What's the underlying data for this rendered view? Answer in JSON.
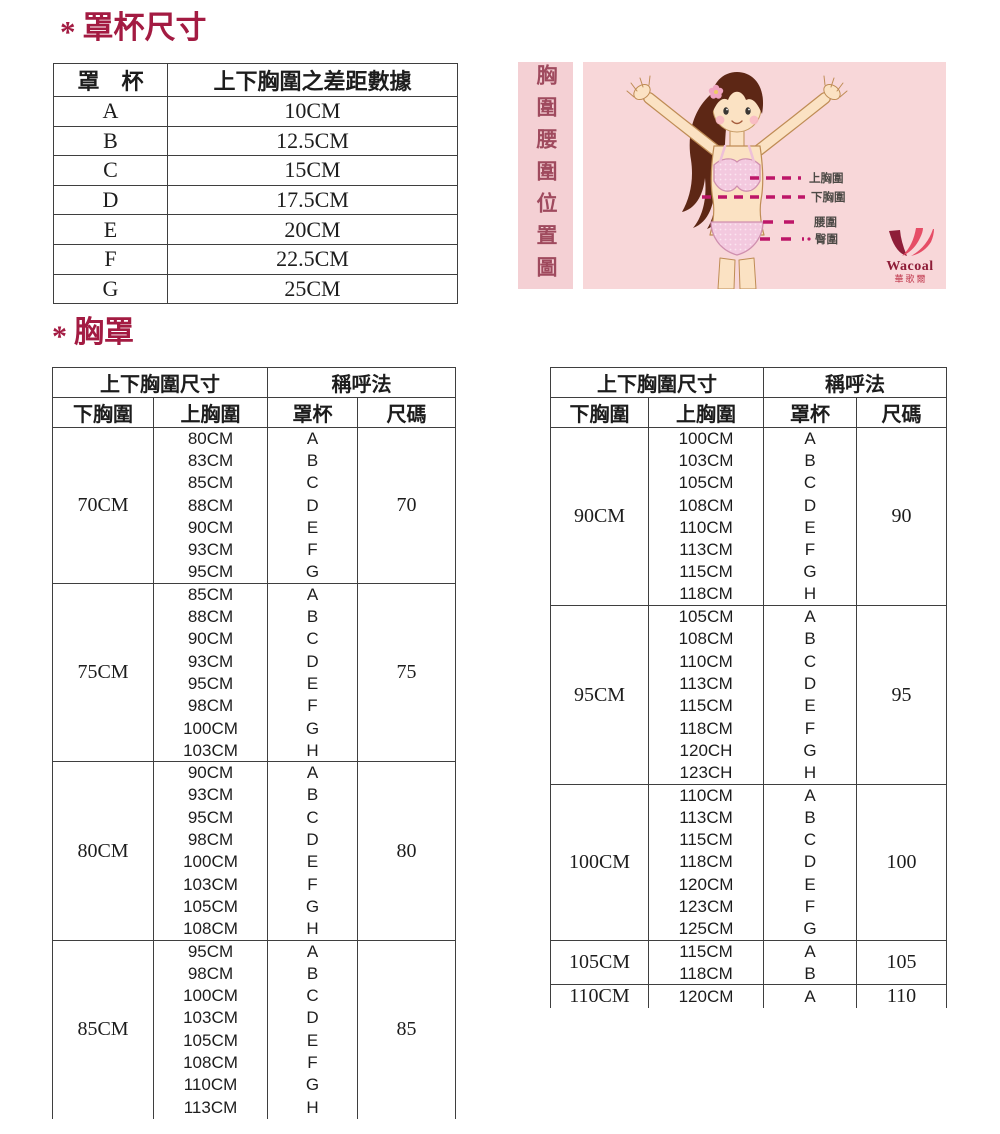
{
  "sections": {
    "cup": {
      "marker": "*",
      "title": "罩杯尺寸"
    },
    "bra": {
      "marker": "*",
      "title": "胸罩"
    }
  },
  "cup_table": {
    "col_headers": [
      "罩　杯",
      "上下胸圍之差距數據"
    ],
    "rows": [
      [
        "A",
        "10CM"
      ],
      [
        "B",
        "12.5CM"
      ],
      [
        "C",
        "15CM"
      ],
      [
        "D",
        "17.5CM"
      ],
      [
        "E",
        "20CM"
      ],
      [
        "F",
        "22.5CM"
      ],
      [
        "G",
        "25CM"
      ]
    ]
  },
  "diagram": {
    "vertical_title": "胸圍腰圍位置圖",
    "labels": [
      "上胸圍",
      "下胸圍",
      "腰圍",
      "臀圍"
    ],
    "brand": "Wacoal",
    "brand_chinese": "華歌爾",
    "colors": {
      "panel_bg": "#f8d7d9",
      "strip_bg": "#f4d0d4",
      "strip_text": "#9f4a5e",
      "dash_line": "#bd1668",
      "label_text": "#4d4a46",
      "logo_dark": "#8e1d38",
      "logo_bright": "#e64d66",
      "title_color": "#a31b42"
    }
  },
  "bra_tables": [
    {
      "group_headers": [
        "上下胸圍尺寸",
        "稱呼法"
      ],
      "col_headers": [
        "下胸圍",
        "上胸圍",
        "罩杯",
        "尺碼"
      ],
      "sections": [
        {
          "under_bust": "70CM",
          "size": "70",
          "rows": [
            [
              "80CM",
              "A"
            ],
            [
              "83CM",
              "B"
            ],
            [
              "85CM",
              "C"
            ],
            [
              "88CM",
              "D"
            ],
            [
              "90CM",
              "E"
            ],
            [
              "93CM",
              "F"
            ],
            [
              "95CM",
              "G"
            ]
          ]
        },
        {
          "under_bust": "75CM",
          "size": "75",
          "rows": [
            [
              "85CM",
              "A"
            ],
            [
              "88CM",
              "B"
            ],
            [
              "90CM",
              "C"
            ],
            [
              "93CM",
              "D"
            ],
            [
              "95CM",
              "E"
            ],
            [
              "98CM",
              "F"
            ],
            [
              "100CM",
              "G"
            ],
            [
              "103CM",
              "H"
            ]
          ]
        },
        {
          "under_bust": "80CM",
          "size": "80",
          "rows": [
            [
              "90CM",
              "A"
            ],
            [
              "93CM",
              "B"
            ],
            [
              "95CM",
              "C"
            ],
            [
              "98CM",
              "D"
            ],
            [
              "100CM",
              "E"
            ],
            [
              "103CM",
              "F"
            ],
            [
              "105CM",
              "G"
            ],
            [
              "108CM",
              "H"
            ]
          ]
        },
        {
          "under_bust": "85CM",
          "size": "85",
          "rows": [
            [
              "95CM",
              "A"
            ],
            [
              "98CM",
              "B"
            ],
            [
              "100CM",
              "C"
            ],
            [
              "103CM",
              "D"
            ],
            [
              "105CM",
              "E"
            ],
            [
              "108CM",
              "F"
            ],
            [
              "110CM",
              "G"
            ],
            [
              "113CM",
              "H"
            ]
          ]
        }
      ]
    },
    {
      "group_headers": [
        "上下胸圍尺寸",
        "稱呼法"
      ],
      "col_headers": [
        "下胸圍",
        "上胸圍",
        "罩杯",
        "尺碼"
      ],
      "sections": [
        {
          "under_bust": "90CM",
          "size": "90",
          "rows": [
            [
              "100CM",
              "A"
            ],
            [
              "103CM",
              "B"
            ],
            [
              "105CM",
              "C"
            ],
            [
              "108CM",
              "D"
            ],
            [
              "110CM",
              "E"
            ],
            [
              "113CM",
              "F"
            ],
            [
              "115CM",
              "G"
            ],
            [
              "118CM",
              "H"
            ]
          ]
        },
        {
          "under_bust": "95CM",
          "size": "95",
          "rows": [
            [
              "105CM",
              "A"
            ],
            [
              "108CM",
              "B"
            ],
            [
              "110CM",
              "C"
            ],
            [
              "113CM",
              "D"
            ],
            [
              "115CM",
              "E"
            ],
            [
              "118CM",
              "F"
            ],
            [
              "120CH",
              "G"
            ],
            [
              "123CH",
              "H"
            ]
          ]
        },
        {
          "under_bust": "100CM",
          "size": "100",
          "rows": [
            [
              "110CM",
              "A"
            ],
            [
              "113CM",
              "B"
            ],
            [
              "115CM",
              "C"
            ],
            [
              "118CM",
              "D"
            ],
            [
              "120CM",
              "E"
            ],
            [
              "123CM",
              "F"
            ],
            [
              "125CM",
              "G"
            ]
          ]
        },
        {
          "under_bust": "105CM",
          "size": "105",
          "rows": [
            [
              "115CM",
              "A"
            ],
            [
              "118CM",
              "B"
            ]
          ]
        },
        {
          "under_bust": "110CM",
          "size": "110",
          "rows": [
            [
              "120CM",
              "A"
            ]
          ]
        }
      ]
    }
  ]
}
